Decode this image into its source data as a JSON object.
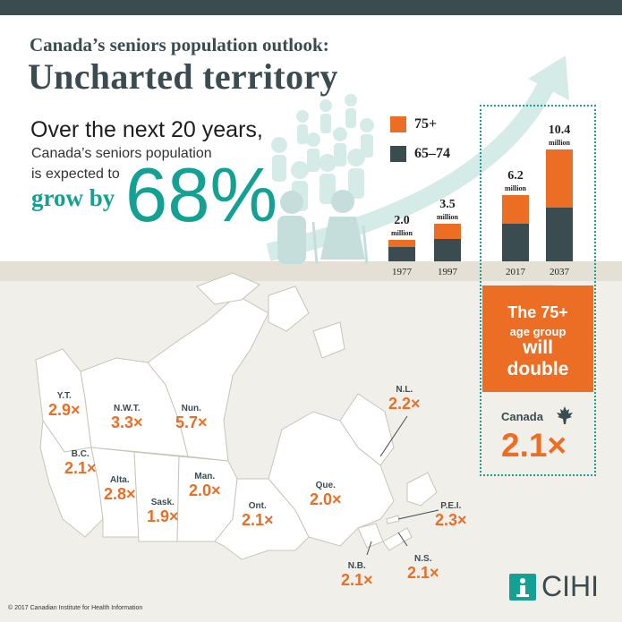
{
  "header": {
    "title_line1": "Canada’s seniors population outlook:",
    "title_line2": "Uncharted territory"
  },
  "intro": {
    "over": "Over the next 20 years,",
    "line2": "Canada’s seniors population",
    "line3": "is expected to",
    "grow": "grow by",
    "percent": "68%"
  },
  "legend": [
    {
      "label": "75+",
      "color": "#ec6d24"
    },
    {
      "label": "65–74",
      "color": "#3b4c51"
    }
  ],
  "chart_data": {
    "type": "bar",
    "stacked": true,
    "categories": [
      "1977",
      "1997",
      "2017",
      "2037"
    ],
    "series": [
      {
        "name": "65–74",
        "values": [
          1.3,
          2.1,
          3.5,
          5.0
        ],
        "color": "#3b4c51"
      },
      {
        "name": "75+",
        "values": [
          0.7,
          1.4,
          2.7,
          5.4
        ],
        "color": "#ec6d24"
      }
    ],
    "totals": [
      {
        "value": "2.0",
        "unit": "million"
      },
      {
        "value": "3.5",
        "unit": "million"
      },
      {
        "value": "6.2",
        "unit": "million"
      },
      {
        "value": "10.4",
        "unit": "million"
      }
    ]
  },
  "callout": {
    "line1": "The 75+",
    "line2": "age group",
    "line3": "will",
    "line4": "double"
  },
  "canada": {
    "label": "Canada",
    "value": "2.1×"
  },
  "provinces": [
    {
      "name": "Y.T.",
      "value": "2.9×"
    },
    {
      "name": "N.W.T.",
      "value": "3.3×"
    },
    {
      "name": "Nun.",
      "value": "5.7×"
    },
    {
      "name": "N.L.",
      "value": "2.2×"
    },
    {
      "name": "B.C.",
      "value": "2.1×"
    },
    {
      "name": "Alta.",
      "value": "2.8×"
    },
    {
      "name": "Sask.",
      "value": "1.9×"
    },
    {
      "name": "Man.",
      "value": "2.0×"
    },
    {
      "name": "Ont.",
      "value": "2.1×"
    },
    {
      "name": "Que.",
      "value": "2.0×"
    },
    {
      "name": "P.E.I.",
      "value": "2.3×"
    },
    {
      "name": "N.B.",
      "value": "2.1×"
    },
    {
      "name": "N.S.",
      "value": "2.1×"
    }
  ],
  "footer": {
    "copyright": "© 2017 Canadian Institute for Health Information",
    "logo_text": "CIHI"
  },
  "colors": {
    "dark": "#3b4c51",
    "orange": "#ec6d24",
    "teal": "#14a194",
    "beige": "#f1efe9"
  }
}
